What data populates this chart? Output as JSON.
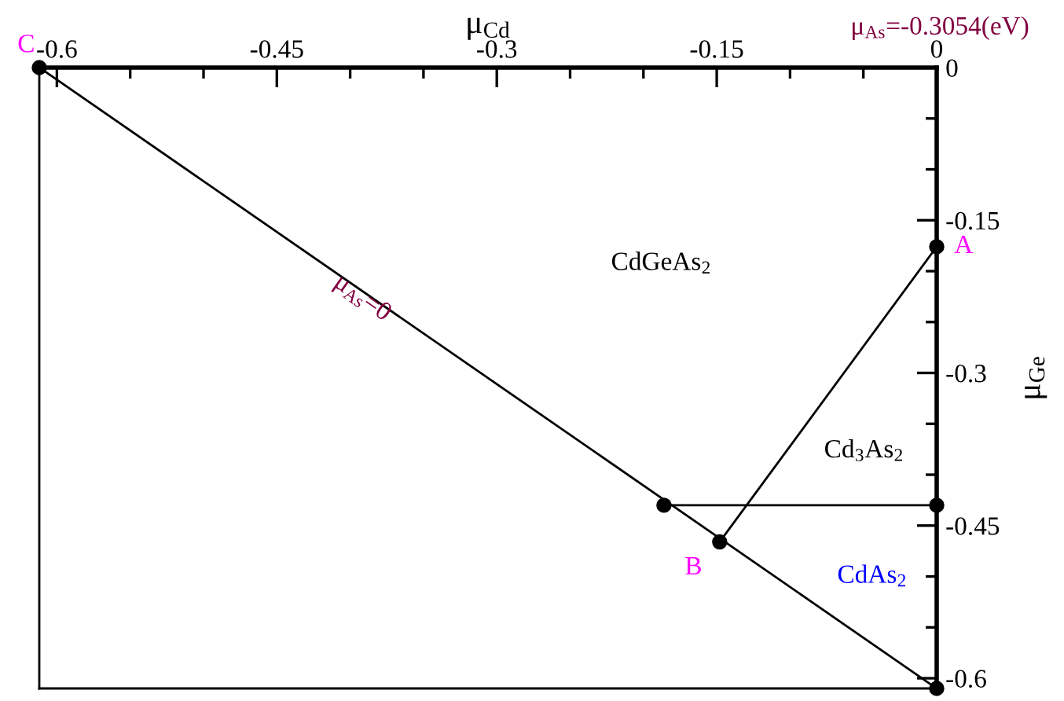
{
  "chart_data": {
    "type": "line",
    "xlabel": "μ$_{Cd}$",
    "ylabel": "μ$_{Ge}$",
    "series": [
      {
        "color": "#000000",
        "x": [
          -0.612,
          0
        ],
        "values": [
          0,
          -0.61
        ]
      },
      {
        "color": "#000000",
        "x": [
          -0.186,
          0
        ],
        "values": [
          -0.43,
          -0.43
        ]
      },
      {
        "color": "#000000",
        "x": [
          0,
          -0.148
        ],
        "values": [
          -0.176,
          -0.466
        ]
      }
    ],
    "xlim": [
      -0.612,
      0
    ],
    "ylim": [
      -0.61,
      0
    ],
    "xticks": [
      -0.6,
      -0.45,
      -0.3,
      -0.15,
      0
    ],
    "yticks": [
      0,
      -0.15,
      -0.3,
      -0.45,
      -0.6
    ],
    "marker": "circle",
    "line_style": "solid",
    "grid": false,
    "annotations": [
      "μ$_{As}$=-0.3054(eV)",
      {
        "text": "A",
        "x": 0,
        "y": -0.176
      },
      {
        "text": "B",
        "x": -0.148,
        "y": -0.466
      },
      {
        "text": "C",
        "x": -0.612,
        "y": 0
      },
      {
        "text": "μ$_{As}$=0",
        "x": -0.392,
        "y": -0.227
      },
      "CdGeAs$_{2}$",
      "Cd$_{3}$As$_{2}$",
      "CdAs$_{2}$"
    ]
  }
}
